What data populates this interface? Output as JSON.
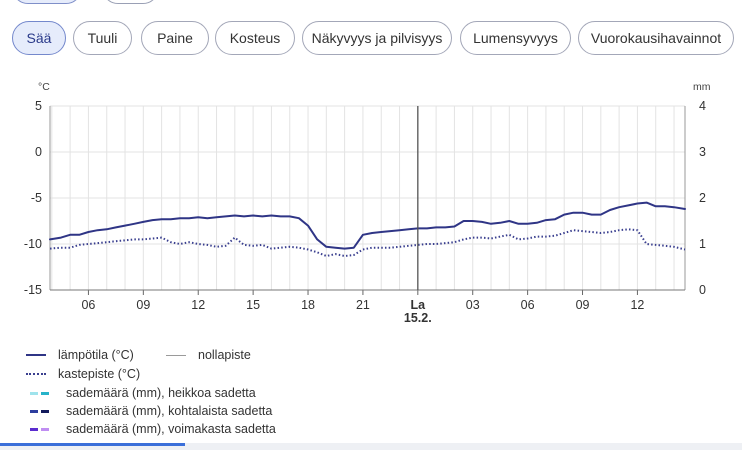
{
  "tabs": [
    "Sää",
    "Tuuli",
    "Paine",
    "Kosteus",
    "Näkyvyys ja pilvisyys",
    "Lumensyvyys",
    "Vuorokausihavainnot"
  ],
  "active_tab": "Sää",
  "colors": {
    "temperature": "#2f3586",
    "dewpoint": "#3a3f8f",
    "zero_line": "#9a9a9a",
    "grid": "#e3e3e3",
    "now_line": "#555555",
    "progress": "#3b6fd9"
  },
  "chart_data": {
    "type": "line",
    "left_unit": "°C",
    "right_unit": "mm",
    "left_ticks": [
      "5",
      "0",
      "-5",
      "-10",
      "-15"
    ],
    "right_ticks": [
      "4",
      "3",
      "2",
      "1",
      "0"
    ],
    "ylim_left": [
      -15,
      5
    ],
    "ylim_right": [
      0,
      4
    ],
    "x_labels": [
      "06",
      "09",
      "12",
      "15",
      "18",
      "21",
      "La",
      "03",
      "06",
      "09",
      "12"
    ],
    "day_marker": {
      "day": "La",
      "date": "15.2."
    },
    "x_range_hours": [
      3.9,
      38.6
    ],
    "grid": true,
    "series": [
      {
        "name": "lämpötila (°C)",
        "style": "solid",
        "x": [
          3.9,
          4.5,
          5,
          5.5,
          6,
          6.5,
          7,
          7.5,
          8,
          8.5,
          9,
          9.5,
          10,
          10.5,
          11,
          11.5,
          12,
          12.5,
          13,
          13.5,
          14,
          14.5,
          15,
          15.5,
          16,
          16.5,
          17,
          17.5,
          18,
          18.5,
          19,
          19.5,
          20,
          20.5,
          21,
          21.5,
          22,
          22.5,
          23,
          23.5,
          24,
          24.5,
          25,
          25.5,
          26,
          26.5,
          27,
          27.5,
          28,
          28.5,
          29,
          29.5,
          30,
          30.5,
          31,
          31.5,
          32,
          32.5,
          33,
          33.5,
          34,
          34.5,
          35,
          35.5,
          36,
          36.5,
          37,
          37.5,
          38,
          38.6
        ],
        "y": [
          -9.5,
          -9.3,
          -9.0,
          -9.0,
          -8.7,
          -8.5,
          -8.4,
          -8.2,
          -8.0,
          -7.8,
          -7.6,
          -7.4,
          -7.3,
          -7.3,
          -7.2,
          -7.2,
          -7.1,
          -7.2,
          -7.1,
          -7.0,
          -6.9,
          -7.0,
          -6.9,
          -7.0,
          -6.9,
          -7.0,
          -7.0,
          -7.2,
          -8.0,
          -9.5,
          -10.3,
          -10.4,
          -10.5,
          -10.4,
          -9.0,
          -8.8,
          -8.7,
          -8.6,
          -8.5,
          -8.4,
          -8.3,
          -8.3,
          -8.2,
          -8.2,
          -8.1,
          -7.5,
          -7.5,
          -7.6,
          -7.8,
          -7.7,
          -7.5,
          -7.8,
          -7.8,
          -7.7,
          -7.4,
          -7.3,
          -6.8,
          -6.6,
          -6.6,
          -6.8,
          -6.8,
          -6.3,
          -6.0,
          -5.8,
          -5.6,
          -5.5,
          -5.9,
          -5.9,
          -6.0,
          -6.2
        ]
      },
      {
        "name": "kastepiste (°C)",
        "style": "dotted",
        "x": [
          3.9,
          4.5,
          5,
          5.5,
          6,
          6.5,
          7,
          7.5,
          8,
          8.5,
          9,
          9.5,
          10,
          10.5,
          11,
          11.5,
          12,
          12.5,
          13,
          13.5,
          14,
          14.5,
          15,
          15.5,
          16,
          16.5,
          17,
          17.5,
          18,
          18.5,
          19,
          19.5,
          20,
          20.5,
          21,
          21.5,
          22,
          22.5,
          23,
          23.5,
          24,
          24.5,
          25,
          25.5,
          26,
          26.5,
          27,
          27.5,
          28,
          28.5,
          29,
          29.5,
          30,
          30.5,
          31,
          31.5,
          32,
          32.5,
          33,
          33.5,
          34,
          34.5,
          35,
          35.5,
          36,
          36.5,
          37,
          37.5,
          38,
          38.6
        ],
        "y": [
          -10.5,
          -10.4,
          -10.4,
          -10.1,
          -10.0,
          -9.9,
          -9.8,
          -9.7,
          -9.6,
          -9.5,
          -9.5,
          -9.4,
          -9.3,
          -9.8,
          -10.0,
          -9.8,
          -10.0,
          -10.1,
          -10.3,
          -10.2,
          -9.3,
          -10.1,
          -10.2,
          -10.1,
          -10.5,
          -10.4,
          -10.3,
          -10.4,
          -10.6,
          -10.9,
          -11.3,
          -11.1,
          -11.3,
          -11.2,
          -10.6,
          -10.4,
          -10.4,
          -10.4,
          -10.3,
          -10.2,
          -10.1,
          -10.0,
          -10.0,
          -9.9,
          -9.8,
          -9.5,
          -9.3,
          -9.3,
          -9.4,
          -9.2,
          -9.0,
          -9.5,
          -9.4,
          -9.2,
          -9.2,
          -9.1,
          -8.8,
          -8.5,
          -8.6,
          -8.7,
          -8.8,
          -8.7,
          -8.5,
          -8.4,
          -8.5,
          -10.0,
          -10.1,
          -10.2,
          -10.3,
          -10.6
        ]
      }
    ]
  },
  "legend": {
    "temperature": "lämpötila (°C)",
    "zero_line": "nollapiste",
    "dewpoint": "kastepiste (°C)",
    "rain": [
      {
        "label": "sademäärä (mm), heikkoa sadetta",
        "colors": [
          "#9fe3ec",
          "#27b3c9"
        ]
      },
      {
        "label": "sademäärä (mm), kohtalaista sadetta",
        "colors": [
          "#2c3d9e",
          "#131b5c"
        ]
      },
      {
        "label": "sademäärä (mm), voimakasta sadetta",
        "colors": [
          "#5b2ccf",
          "#c08ef2"
        ]
      }
    ]
  }
}
